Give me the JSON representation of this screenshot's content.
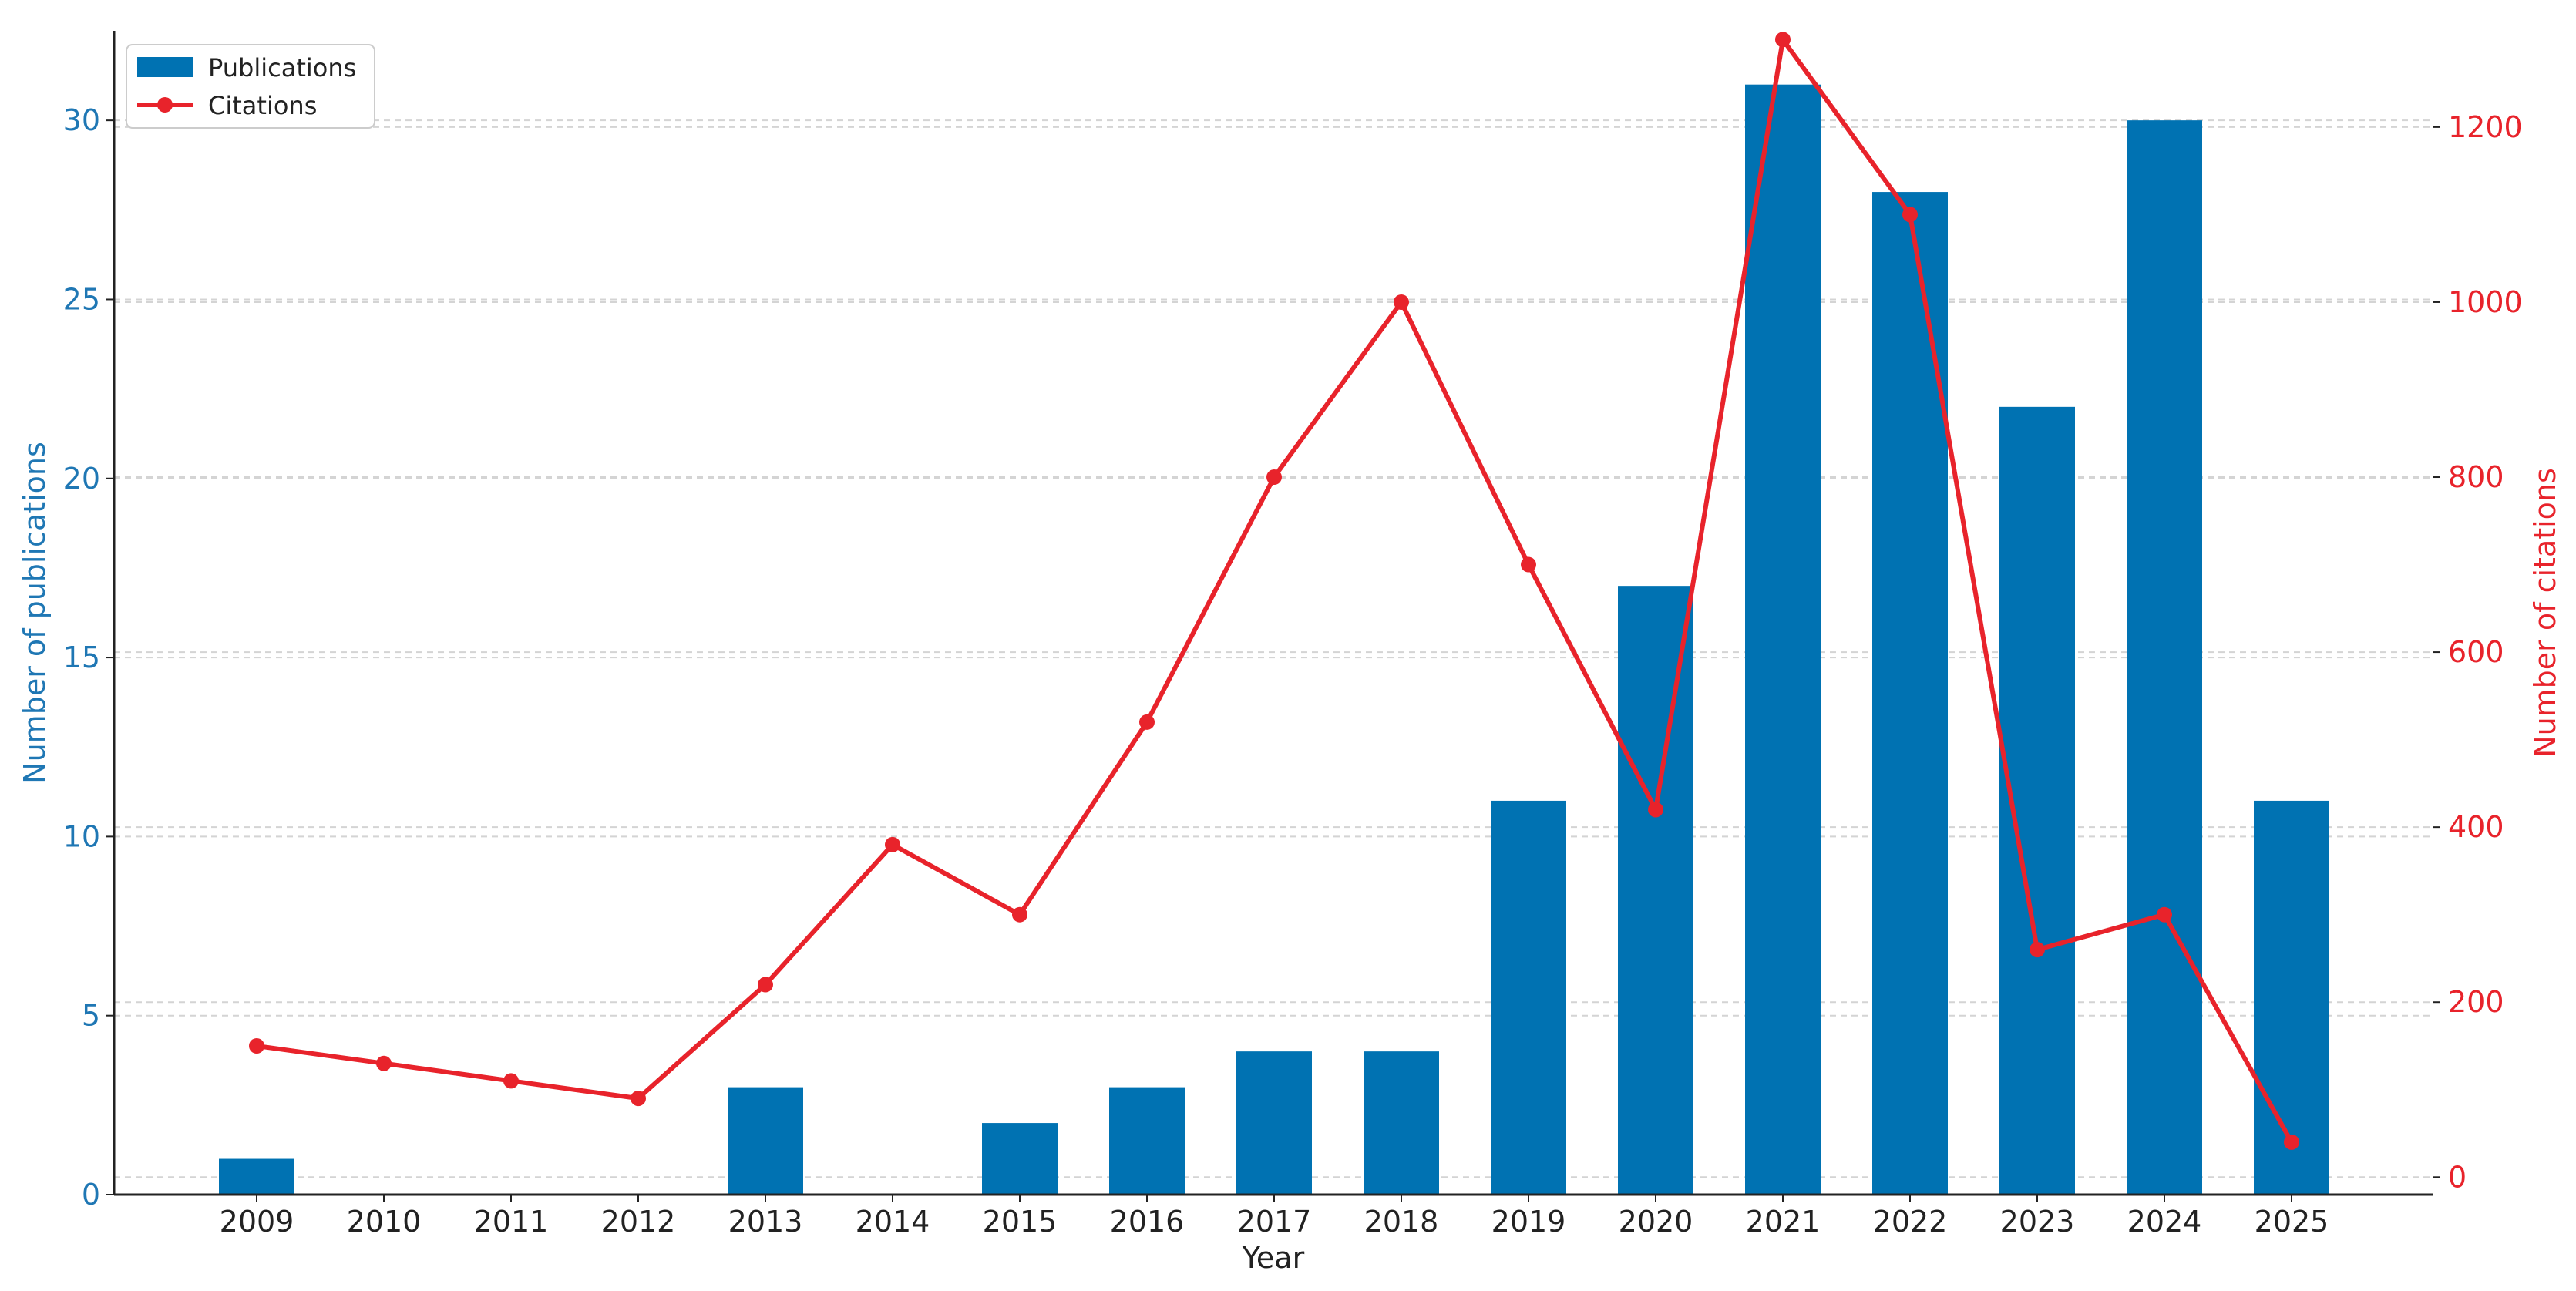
{
  "chart_data": {
    "type": "bar",
    "categories": [
      "2009",
      "2010",
      "2011",
      "2012",
      "2013",
      "2014",
      "2015",
      "2016",
      "2017",
      "2018",
      "2019",
      "2020",
      "2021",
      "2022",
      "2023",
      "2024",
      "2025"
    ],
    "series": [
      {
        "name": "Publications",
        "type": "bar",
        "axis": "left",
        "color": "#0072B2",
        "values": [
          1,
          0,
          0,
          0,
          3,
          0,
          2,
          3,
          4,
          4,
          11,
          17,
          31,
          28,
          22,
          30,
          11
        ]
      },
      {
        "name": "Citations",
        "type": "line",
        "axis": "right",
        "color": "#E8232B",
        "values": [
          150,
          130,
          110,
          90,
          220,
          380,
          300,
          520,
          800,
          1000,
          700,
          420,
          1300,
          1100,
          260,
          300,
          40
        ]
      }
    ],
    "xlabel": "Year",
    "ylabel": "Number of publications",
    "y2label": "Number of citations",
    "ylim": [
      0,
      32.5
    ],
    "y2lim": [
      -20,
      1310
    ],
    "yticks": [
      0,
      5,
      10,
      15,
      20,
      25,
      30
    ],
    "y2ticks": [
      0,
      200,
      400,
      600,
      800,
      1000,
      1200
    ],
    "grid": true,
    "legend_position": "top-left",
    "left_axis_color": "#1F77B4",
    "right_axis_color": "#E8232B"
  }
}
